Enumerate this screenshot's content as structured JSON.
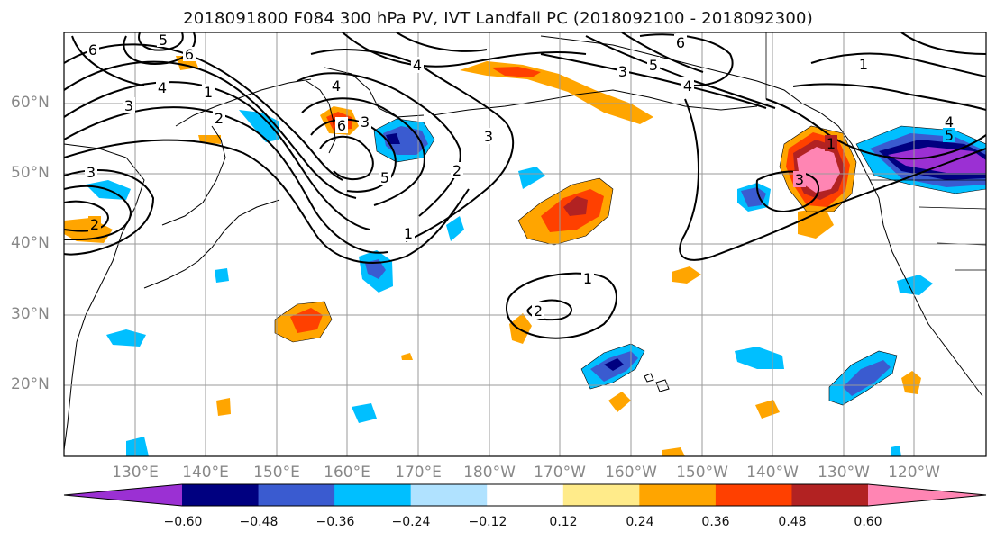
{
  "title": "2018091800 F084 300 hPa PV, IVT Landfall PC (2018092100 - 2018092300)",
  "lat_labels": [
    "60°N",
    "50°N",
    "40°N",
    "30°N",
    "20°N"
  ],
  "lon_labels": [
    "130°E",
    "140°E",
    "150°E",
    "160°E",
    "170°E",
    "180°W",
    "170°W",
    "160°W",
    "150°W",
    "140°W",
    "130°W",
    "120°W"
  ],
  "colorbar": {
    "colors": [
      "#9b30d3",
      "#000080",
      "#3a5bd0",
      "#00bfff",
      "#b0e2ff",
      "#ffffff",
      "#ffeb8a",
      "#ffa500",
      "#ff4000",
      "#b22222",
      "#ff85b3"
    ],
    "tick_labels": [
      "−0.60",
      "−0.48",
      "−0.36",
      "−0.24",
      "−0.12",
      "0.12",
      "0.24",
      "0.36",
      "0.48",
      "0.60"
    ]
  },
  "contour_labels": [
    "6",
    "1",
    "4",
    "3",
    "2",
    "5",
    "6",
    "4",
    "3",
    "2",
    "1",
    "1",
    "2",
    "3",
    "4",
    "5",
    "6",
    "1",
    "4",
    "5",
    "3",
    "6",
    "3",
    "4",
    "5",
    "3",
    "1",
    "2"
  ]
}
